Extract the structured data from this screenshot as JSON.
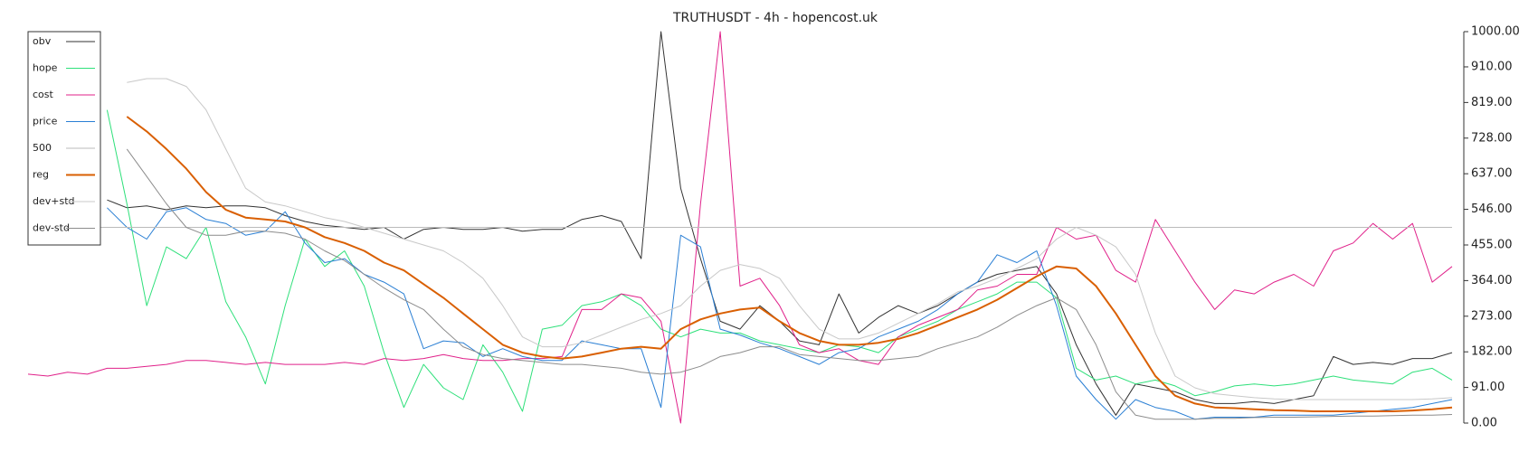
{
  "chart_data": {
    "type": "line",
    "title": "TRUTHUSDT - 4h - hopencost.uk",
    "legend": "upper left",
    "ylim": [
      0,
      1000
    ],
    "yticks": [
      {
        "value": 0,
        "label": "0.00"
      },
      {
        "value": 91,
        "label": "91.00"
      },
      {
        "value": 182,
        "label": "182.00"
      },
      {
        "value": 273,
        "label": "273.00"
      },
      {
        "value": 364,
        "label": "364.00"
      },
      {
        "value": 455,
        "label": "455.00"
      },
      {
        "value": 546,
        "label": "546.00"
      },
      {
        "value": 637,
        "label": "637.00"
      },
      {
        "value": 728,
        "label": "728.00"
      },
      {
        "value": 819,
        "label": "819.00"
      },
      {
        "value": 910,
        "label": "910.00"
      },
      {
        "value": 1000,
        "label": "1000.00"
      }
    ],
    "series": [
      {
        "name": "obv",
        "color": "#333333",
        "width": 1,
        "values": [
          null,
          null,
          null,
          null,
          570,
          550,
          555,
          545,
          555,
          550,
          555,
          555,
          550,
          530,
          515,
          505,
          500,
          495,
          500,
          470,
          495,
          500,
          495,
          495,
          500,
          490,
          495,
          495,
          520,
          530,
          515,
          420,
          1000,
          600,
          420,
          260,
          240,
          300,
          260,
          210,
          200,
          330,
          230,
          270,
          300,
          280,
          300,
          330,
          360,
          380,
          390,
          400,
          330,
          200,
          100,
          20,
          100,
          90,
          80,
          60,
          50,
          50,
          55,
          50,
          60,
          70,
          170,
          150,
          155,
          150,
          165,
          165,
          180
        ]
      },
      {
        "name": "hope",
        "color": "#2ee07a",
        "width": 1,
        "values": [
          null,
          null,
          null,
          null,
          800,
          560,
          300,
          450,
          420,
          500,
          310,
          220,
          100,
          300,
          470,
          400,
          440,
          350,
          180,
          40,
          150,
          90,
          60,
          200,
          130,
          30,
          240,
          250,
          300,
          310,
          330,
          300,
          240,
          220,
          240,
          230,
          230,
          210,
          200,
          190,
          180,
          200,
          195,
          180,
          220,
          240,
          260,
          290,
          310,
          330,
          360,
          360,
          320,
          140,
          110,
          120,
          100,
          110,
          95,
          70,
          80,
          95,
          100,
          95,
          100,
          110,
          120,
          110,
          105,
          100,
          130,
          140,
          110
        ]
      },
      {
        "name": "cost",
        "color": "#e0218a",
        "width": 1,
        "values": [
          125,
          120,
          130,
          125,
          140,
          140,
          145,
          150,
          160,
          160,
          155,
          150,
          155,
          150,
          150,
          150,
          155,
          150,
          165,
          160,
          165,
          175,
          165,
          160,
          160,
          165,
          165,
          170,
          290,
          290,
          330,
          320,
          260,
          0,
          560,
          1000,
          350,
          370,
          300,
          200,
          180,
          190,
          160,
          150,
          220,
          250,
          270,
          290,
          340,
          350,
          380,
          380,
          500,
          470,
          480,
          390,
          360,
          520,
          440,
          360,
          290,
          340,
          330,
          360,
          380,
          350,
          440,
          460,
          510,
          470,
          510,
          360,
          400
        ]
      },
      {
        "name": "price",
        "color": "#2a7fd4",
        "width": 1,
        "values": [
          null,
          null,
          null,
          null,
          550,
          500,
          470,
          540,
          550,
          520,
          510,
          480,
          490,
          540,
          460,
          410,
          420,
          380,
          360,
          330,
          190,
          210,
          205,
          170,
          190,
          170,
          160,
          160,
          210,
          200,
          190,
          190,
          40,
          480,
          450,
          240,
          225,
          205,
          190,
          170,
          150,
          180,
          190,
          220,
          240,
          260,
          290,
          330,
          360,
          430,
          410,
          440,
          300,
          120,
          60,
          10,
          60,
          40,
          30,
          10,
          15,
          15,
          15,
          20,
          20,
          20,
          20,
          25,
          30,
          35,
          40,
          50,
          60
        ]
      },
      {
        "name": "500",
        "color": "#bbbbbb",
        "width": 1,
        "values": [
          500,
          500,
          500,
          500,
          500,
          500,
          500,
          500,
          500,
          500,
          500,
          500,
          500,
          500,
          500,
          500,
          500,
          500,
          500,
          500,
          500,
          500,
          500,
          500,
          500,
          500,
          500,
          500,
          500,
          500,
          500,
          500,
          500,
          500,
          500,
          500,
          500,
          500,
          500,
          500,
          500,
          500,
          500,
          500,
          500,
          500,
          500,
          500,
          500,
          500,
          500,
          500,
          500,
          500,
          500,
          500,
          500,
          500,
          500,
          500,
          500,
          500,
          500,
          500,
          500,
          500,
          500,
          500,
          500,
          500,
          500,
          500,
          500
        ]
      },
      {
        "name": "reg",
        "color": "#d95f02",
        "width": 2,
        "values": [
          null,
          null,
          null,
          null,
          null,
          783,
          745,
          700,
          650,
          590,
          545,
          525,
          520,
          515,
          500,
          475,
          460,
          440,
          410,
          390,
          355,
          320,
          280,
          240,
          200,
          180,
          170,
          165,
          170,
          180,
          190,
          195,
          190,
          240,
          265,
          280,
          290,
          295,
          260,
          230,
          210,
          200,
          200,
          205,
          215,
          230,
          250,
          270,
          290,
          315,
          345,
          375,
          400,
          395,
          350,
          280,
          200,
          120,
          70,
          50,
          40,
          38,
          35,
          33,
          32,
          30,
          30,
          30,
          30,
          30,
          32,
          35,
          40
        ]
      },
      {
        "name": "dev+std",
        "color": "#c8c8c8",
        "width": 1,
        "values": [
          null,
          null,
          null,
          null,
          null,
          870,
          880,
          880,
          860,
          800,
          700,
          600,
          565,
          555,
          540,
          525,
          515,
          500,
          485,
          470,
          455,
          440,
          410,
          370,
          300,
          220,
          195,
          195,
          205,
          225,
          245,
          265,
          280,
          300,
          350,
          390,
          405,
          395,
          370,
          300,
          240,
          215,
          215,
          230,
          255,
          280,
          305,
          335,
          350,
          370,
          395,
          420,
          470,
          500,
          480,
          450,
          380,
          230,
          120,
          90,
          75,
          70,
          65,
          62,
          60,
          60,
          60,
          60,
          60,
          60,
          60,
          62,
          65
        ]
      },
      {
        "name": "dev-std",
        "color": "#8c8c8c",
        "width": 1,
        "values": [
          null,
          null,
          null,
          null,
          null,
          700,
          630,
          560,
          500,
          480,
          480,
          490,
          490,
          485,
          470,
          440,
          415,
          380,
          345,
          315,
          290,
          240,
          195,
          175,
          165,
          160,
          155,
          150,
          150,
          145,
          140,
          130,
          125,
          130,
          145,
          170,
          180,
          195,
          195,
          175,
          170,
          165,
          160,
          160,
          165,
          170,
          190,
          205,
          220,
          245,
          275,
          300,
          320,
          290,
          200,
          80,
          20,
          10,
          10,
          10,
          12,
          12,
          14,
          15,
          15,
          16,
          17,
          18,
          18,
          19,
          20,
          20,
          22
        ]
      }
    ]
  }
}
